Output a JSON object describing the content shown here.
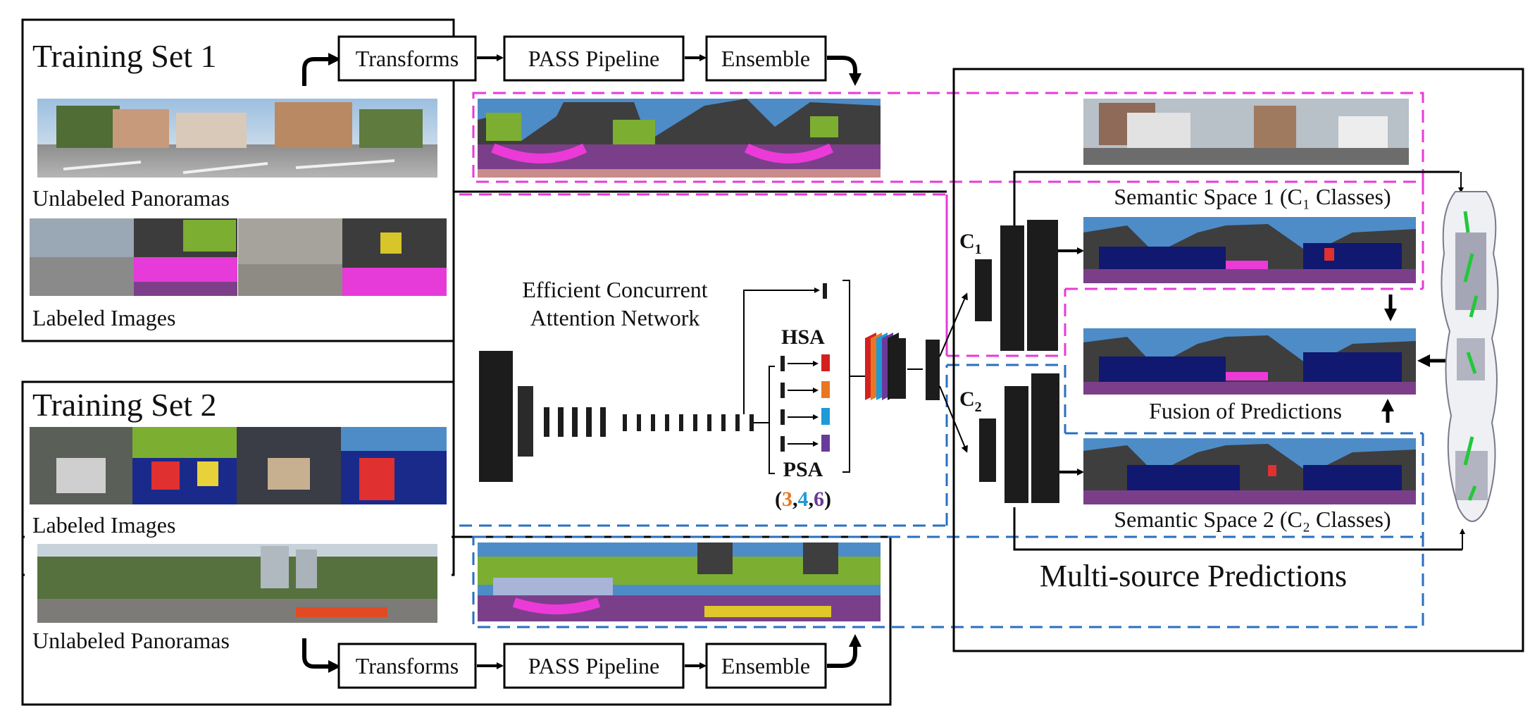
{
  "training_set_1": {
    "title": "Training Set 1",
    "unlabeled_label": "Unlabeled Panoramas",
    "labeled_label": "Labeled Images",
    "pipeline": [
      "Transforms",
      "PASS Pipeline",
      "Ensemble"
    ]
  },
  "training_set_2": {
    "title": "Training Set 2",
    "labeled_label": "Labeled Images",
    "unlabeled_label": "Unlabeled Panoramas",
    "pipeline": [
      "Transforms",
      "PASS Pipeline",
      "Ensemble"
    ]
  },
  "network": {
    "title_line1": "Efficient Concurrent",
    "title_line2": "Attention Network",
    "hsa": "HSA",
    "psa": "PSA",
    "psa_open": "(",
    "psa_k1": "3",
    "psa_sep1": ",",
    "psa_k2": "4",
    "psa_sep2": ",",
    "psa_k3": "6",
    "psa_close": ")",
    "colors": {
      "k3": "#e87722",
      "k4": "#1e9ad6",
      "k6": "#6a3a9a"
    }
  },
  "heads": {
    "c1_base": "C",
    "c1_sub": "1",
    "c2_base": "C",
    "c2_sub": "2"
  },
  "predictions": {
    "space1_label": "Semantic Space 1 (C₁ Classes)",
    "space2_label": "Semantic Space 2 (C₂ Classes)",
    "fusion_label": "Fusion of Predictions",
    "title": "Multi-source Predictions"
  },
  "colors": {
    "set1_dash": "#e83ad8",
    "set2_dash": "#2a6fc0"
  }
}
